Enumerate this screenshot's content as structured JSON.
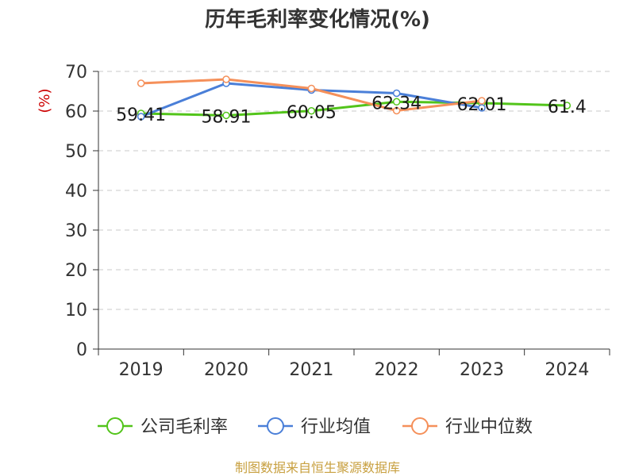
{
  "chart_data": {
    "type": "line",
    "title": "历年毛利率变化情况(%)",
    "ylabel": "(%)",
    "xlabel": "",
    "categories": [
      "2019",
      "2020",
      "2021",
      "2022",
      "2023",
      "2024"
    ],
    "ylim": [
      0,
      70
    ],
    "yticks": [
      0,
      10,
      20,
      30,
      40,
      50,
      60,
      70
    ],
    "grid": true,
    "legend_position": "bottom",
    "series": [
      {
        "name": "公司毛利率",
        "color": "#52c41a",
        "values": [
          59.41,
          58.91,
          60.05,
          62.34,
          62.01,
          61.4
        ],
        "labels": [
          "59.41",
          "58.91",
          "60.05",
          "62.34",
          "62.01",
          "61.4"
        ]
      },
      {
        "name": "行业均值",
        "color": "#4a7fd8",
        "values": [
          58.6,
          67.0,
          65.3,
          64.5,
          60.8,
          null
        ]
      },
      {
        "name": "行业中位数",
        "color": "#f5905a",
        "values": [
          67.0,
          68.0,
          65.7,
          60.1,
          62.6,
          null
        ]
      }
    ],
    "source": "制图数据来自恒生聚源数据库"
  }
}
